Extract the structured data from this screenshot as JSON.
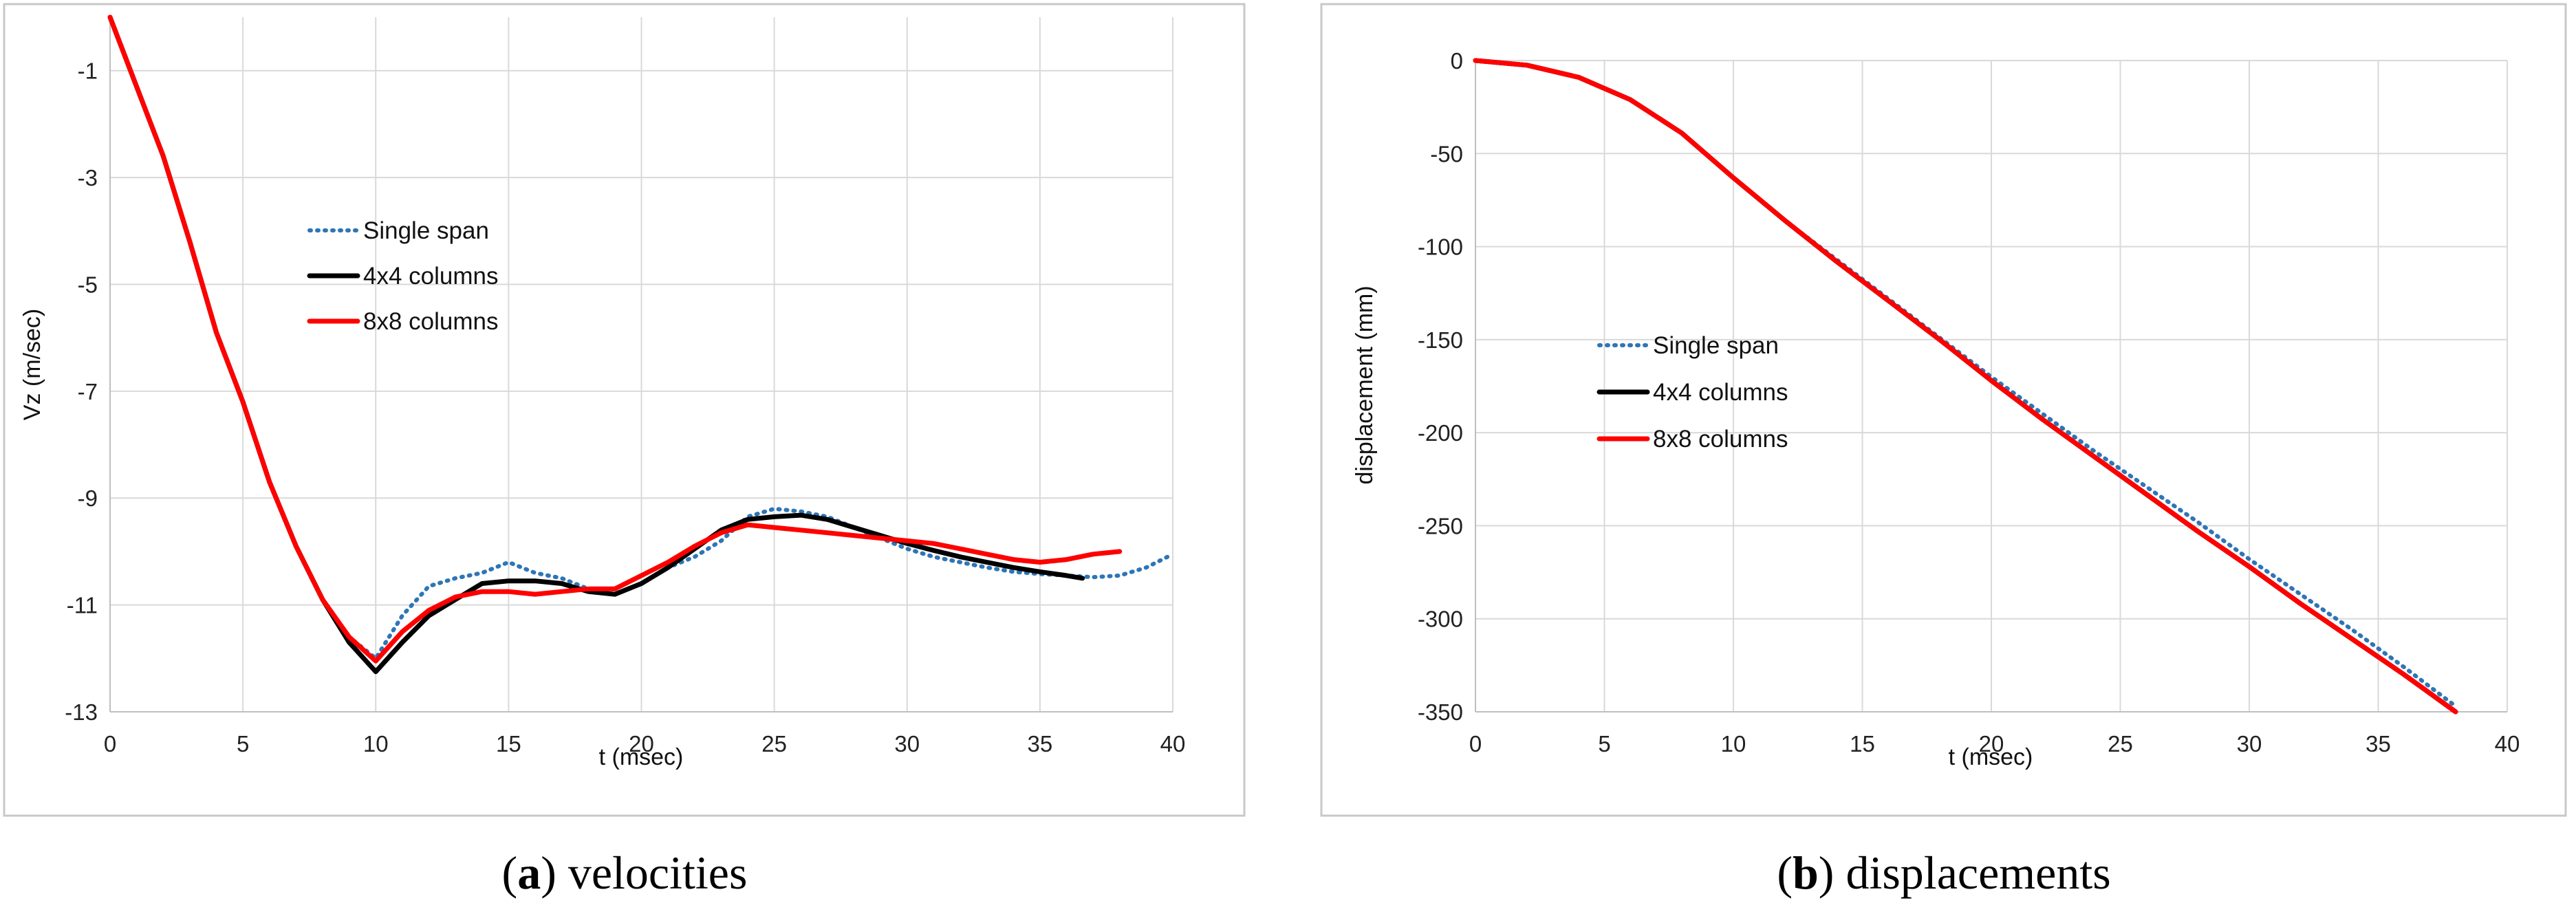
{
  "chart_data": [
    {
      "type": "line",
      "caption": {
        "letter": "a",
        "text": "velocities"
      },
      "xlabel": "t (msec)",
      "ylabel": "Vz (m/sec)",
      "xlim": [
        0,
        40
      ],
      "ylim": [
        -13,
        0
      ],
      "xticks": [
        0,
        5,
        10,
        15,
        20,
        25,
        30,
        35,
        40
      ],
      "yticks": [
        -1,
        -3,
        -5,
        -7,
        -9,
        -11,
        -13
      ],
      "grid": true,
      "legend": "center-left",
      "series": [
        {
          "name": "Single span",
          "color": "#2e75b6",
          "style": "dotted",
          "x": [
            0,
            1,
            2,
            3,
            4,
            5,
            6,
            7,
            8,
            9,
            10,
            11,
            12,
            13,
            14,
            15,
            16,
            17,
            18,
            19,
            20,
            21,
            22,
            23,
            24,
            25,
            26,
            27,
            28,
            29,
            30,
            31,
            32,
            33,
            34,
            35,
            36,
            37,
            38,
            39,
            40
          ],
          "y": [
            0,
            -1.3,
            -2.6,
            -4.2,
            -5.9,
            -7.2,
            -8.7,
            -9.9,
            -10.9,
            -11.6,
            -12.0,
            -11.2,
            -10.65,
            -10.5,
            -10.4,
            -10.2,
            -10.4,
            -10.5,
            -10.7,
            -10.8,
            -10.6,
            -10.3,
            -10.1,
            -9.8,
            -9.35,
            -9.2,
            -9.25,
            -9.35,
            -9.55,
            -9.75,
            -9.95,
            -10.1,
            -10.2,
            -10.3,
            -10.38,
            -10.42,
            -10.45,
            -10.48,
            -10.45,
            -10.3,
            -10.05
          ]
        },
        {
          "name": "4x4 columns",
          "color": "#000000",
          "style": "solid",
          "x": [
            0,
            1,
            2,
            3,
            4,
            5,
            6,
            7,
            8,
            9,
            10,
            11,
            12,
            13,
            14,
            15,
            16,
            17,
            18,
            19,
            20,
            21,
            22,
            23,
            24,
            25,
            26,
            27,
            28,
            29,
            30,
            31,
            32,
            33,
            34,
            35,
            36,
            36.6
          ],
          "y": [
            0,
            -1.3,
            -2.6,
            -4.2,
            -5.9,
            -7.2,
            -8.7,
            -9.9,
            -10.9,
            -11.7,
            -12.25,
            -11.7,
            -11.2,
            -10.9,
            -10.6,
            -10.55,
            -10.55,
            -10.6,
            -10.75,
            -10.8,
            -10.6,
            -10.3,
            -9.95,
            -9.6,
            -9.4,
            -9.35,
            -9.32,
            -9.4,
            -9.55,
            -9.7,
            -9.85,
            -9.98,
            -10.1,
            -10.2,
            -10.3,
            -10.38,
            -10.45,
            -10.5
          ]
        },
        {
          "name": "8x8 columns",
          "color": "#ff0000",
          "style": "solid",
          "x": [
            0,
            1,
            2,
            3,
            4,
            5,
            6,
            7,
            8,
            9,
            10,
            11,
            12,
            13,
            14,
            15,
            16,
            17,
            18,
            19,
            20,
            21,
            22,
            23,
            24,
            25,
            26,
            27,
            28,
            29,
            30,
            31,
            32,
            33,
            34,
            35,
            36,
            37,
            38
          ],
          "y": [
            0,
            -1.3,
            -2.6,
            -4.2,
            -5.9,
            -7.2,
            -8.7,
            -9.9,
            -10.9,
            -11.6,
            -12.05,
            -11.5,
            -11.1,
            -10.85,
            -10.75,
            -10.75,
            -10.8,
            -10.75,
            -10.7,
            -10.7,
            -10.45,
            -10.2,
            -9.9,
            -9.65,
            -9.5,
            -9.55,
            -9.6,
            -9.65,
            -9.7,
            -9.75,
            -9.8,
            -9.85,
            -9.95,
            -10.05,
            -10.15,
            -10.2,
            -10.15,
            -10.05,
            -10.0
          ]
        }
      ]
    },
    {
      "type": "line",
      "caption": {
        "letter": "b",
        "text": "displacements"
      },
      "xlabel": "t (msec)",
      "ylabel": "displacement (mm)",
      "xlim": [
        0,
        40
      ],
      "ylim": [
        -350,
        0
      ],
      "xticks": [
        0,
        5,
        10,
        15,
        20,
        25,
        30,
        35,
        40
      ],
      "yticks": [
        0,
        -50,
        -100,
        -150,
        -200,
        -250,
        -300,
        -350
      ],
      "grid": true,
      "legend": "center-left",
      "series": [
        {
          "name": "Single span",
          "color": "#2e75b6",
          "style": "dotted",
          "x": [
            0,
            2,
            4,
            6,
            8,
            10,
            12,
            14,
            16,
            18,
            20,
            22,
            24,
            26,
            28,
            30,
            32,
            34,
            36,
            38
          ],
          "y": [
            0,
            -2.5,
            -9,
            -21,
            -39,
            -63,
            -86,
            -107,
            -128,
            -149,
            -170,
            -190,
            -210,
            -229,
            -248,
            -268,
            -287,
            -306,
            -326,
            -347
          ]
        },
        {
          "name": "4x4 columns",
          "color": "#000000",
          "style": "solid",
          "x": [
            0,
            2,
            4,
            6,
            8,
            10,
            12,
            14,
            16,
            18,
            20,
            22,
            24,
            26,
            28,
            30,
            32,
            34,
            36,
            38
          ],
          "y": [
            0,
            -2.5,
            -9,
            -21,
            -39,
            -63,
            -86,
            -108,
            -129,
            -150,
            -172,
            -193,
            -213,
            -233,
            -253,
            -272,
            -292,
            -311,
            -330,
            -350
          ]
        },
        {
          "name": "8x8 columns",
          "color": "#ff0000",
          "style": "solid",
          "x": [
            0,
            2,
            4,
            6,
            8,
            10,
            12,
            14,
            16,
            18,
            20,
            22,
            24,
            26,
            28,
            30,
            32,
            34,
            36,
            38
          ],
          "y": [
            0,
            -2.5,
            -9,
            -21,
            -39,
            -63,
            -86,
            -108,
            -129,
            -150,
            -172,
            -193,
            -213,
            -233,
            -253,
            -272,
            -292,
            -311,
            -330,
            -350
          ]
        }
      ]
    }
  ]
}
